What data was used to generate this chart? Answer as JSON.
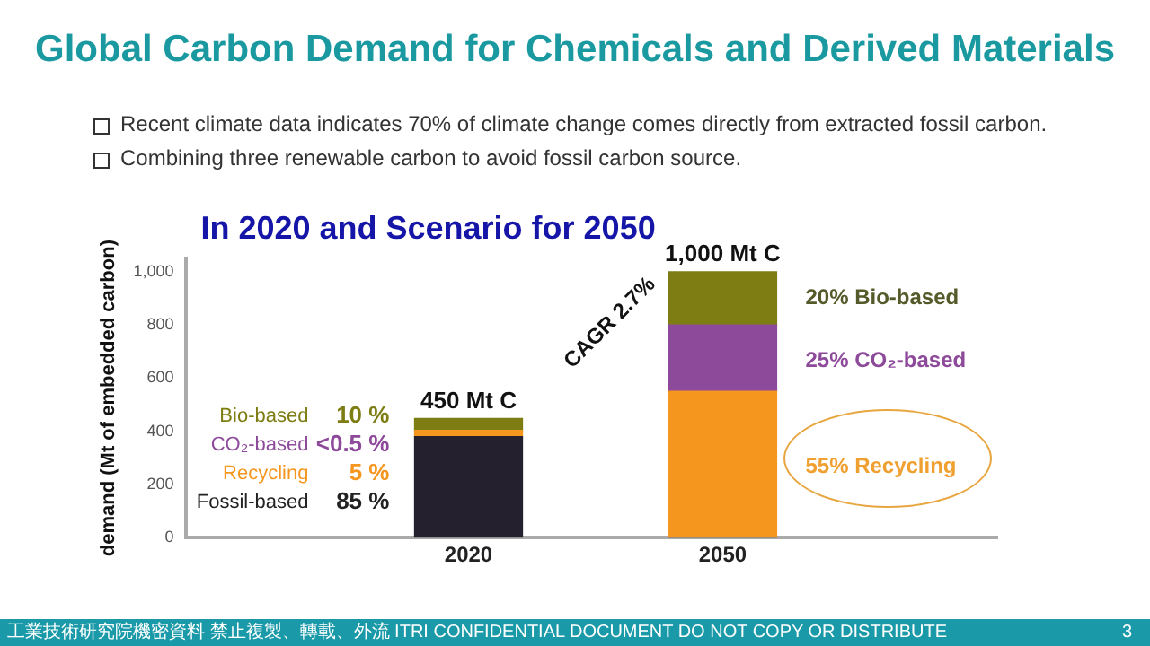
{
  "chart_data": {
    "type": "bar",
    "title": "Global Carbon Demand for Chemicals and Derived Materials",
    "subtitle": "In 2020 and Scenario for 2050",
    "ylabel": "demand (Mt of embedded carbon)",
    "categories": [
      "2020",
      "2050"
    ],
    "stacked": true,
    "series": [
      {
        "name": "Fossil-based",
        "color": "#24202e",
        "values": [
          380,
          0
        ]
      },
      {
        "name": "Recycling",
        "color": "#f5961e",
        "values": [
          23,
          550
        ]
      },
      {
        "name": "CO₂-based",
        "color": "#8e4a9a",
        "values": [
          null,
          250
        ]
      },
      {
        "name": "Bio-based",
        "color": "#7d7d14",
        "values": [
          45,
          200
        ]
      }
    ],
    "ylim": [
      0,
      1050
    ],
    "yticks": [
      0,
      200,
      400,
      600,
      800,
      {
        "value": 1000,
        "label": "1,000"
      }
    ],
    "grid": false,
    "legend": false,
    "annotations": [
      "Recent climate data indicates 70% of climate change comes directly from extracted fossil carbon.",
      "Combining three renewable carbon to avoid fossil carbon source.",
      "85 %",
      "5 %",
      "<0.5 %",
      "10 %",
      "450 Mt C",
      "1,000 Mt C",
      "CAGR 2.7%",
      "20% Bio-based",
      "25% CO₂-based",
      "55% Recycling",
      "工業技術研究院機密資料 禁止複製、轉載、外流 ITRI CONFIDENTIAL DOCUMENT DO NOT COPY OR DISTRIBUTE",
      "3"
    ]
  }
}
